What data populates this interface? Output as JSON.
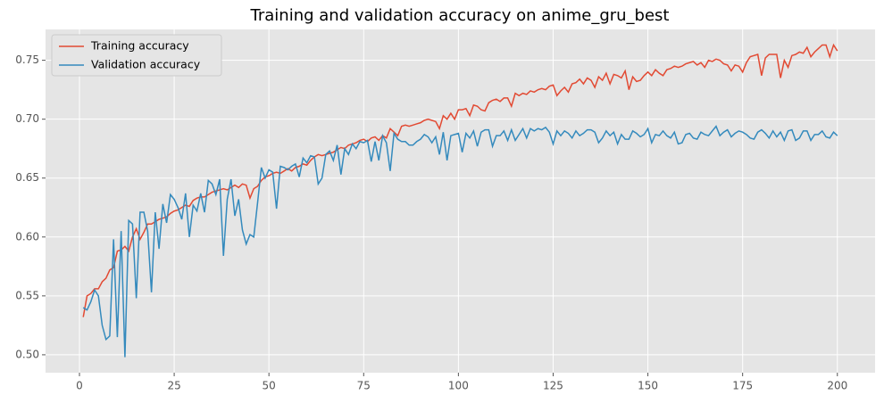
{
  "chart_data": {
    "type": "line",
    "title": "Training and validation accuracy on anime_gru_best",
    "x": [
      1,
      2,
      3,
      4,
      5,
      6,
      7,
      8,
      9,
      10,
      11,
      12,
      13,
      14,
      15,
      16,
      17,
      18,
      19,
      20,
      21,
      22,
      23,
      24,
      25,
      26,
      27,
      28,
      29,
      30,
      31,
      32,
      33,
      34,
      35,
      36,
      37,
      38,
      39,
      40,
      41,
      42,
      43,
      44,
      45,
      46,
      47,
      48,
      49,
      50,
      51,
      52,
      53,
      54,
      55,
      56,
      57,
      58,
      59,
      60,
      61,
      62,
      63,
      64,
      65,
      66,
      67,
      68,
      69,
      70,
      71,
      72,
      73,
      74,
      75,
      76,
      77,
      78,
      79,
      80,
      81,
      82,
      83,
      84,
      85,
      86,
      87,
      88,
      89,
      90,
      91,
      92,
      93,
      94,
      95,
      96,
      97,
      98,
      99,
      100,
      101,
      102,
      103,
      104,
      105,
      106,
      107,
      108,
      109,
      110,
      111,
      112,
      113,
      114,
      115,
      116,
      117,
      118,
      119,
      120,
      121,
      122,
      123,
      124,
      125,
      126,
      127,
      128,
      129,
      130,
      131,
      132,
      133,
      134,
      135,
      136,
      137,
      138,
      139,
      140,
      141,
      142,
      143,
      144,
      145,
      146,
      147,
      148,
      149,
      150,
      151,
      152,
      153,
      154,
      155,
      156,
      157,
      158,
      159,
      160,
      161,
      162,
      163,
      164,
      165,
      166,
      167,
      168,
      169,
      170,
      171,
      172,
      173,
      174,
      175,
      176,
      177,
      178,
      179,
      180,
      181,
      182,
      183,
      184,
      185,
      186,
      187,
      188,
      189,
      190,
      191,
      192,
      193,
      194,
      195,
      196,
      197,
      198,
      199,
      200
    ],
    "series": [
      {
        "name": "Training accuracy",
        "color": "#E24A33",
        "values": [
          0.532,
          0.55,
          0.552,
          0.556,
          0.556,
          0.562,
          0.565,
          0.572,
          0.574,
          0.588,
          0.589,
          0.592,
          0.588,
          0.6,
          0.607,
          0.598,
          0.604,
          0.611,
          0.611,
          0.613,
          0.615,
          0.616,
          0.617,
          0.62,
          0.622,
          0.623,
          0.625,
          0.627,
          0.626,
          0.631,
          0.633,
          0.634,
          0.634,
          0.636,
          0.638,
          0.639,
          0.64,
          0.641,
          0.64,
          0.642,
          0.644,
          0.642,
          0.645,
          0.644,
          0.633,
          0.641,
          0.643,
          0.648,
          0.651,
          0.652,
          0.654,
          0.655,
          0.654,
          0.656,
          0.658,
          0.656,
          0.659,
          0.66,
          0.662,
          0.661,
          0.665,
          0.668,
          0.67,
          0.669,
          0.67,
          0.671,
          0.672,
          0.674,
          0.676,
          0.675,
          0.678,
          0.679,
          0.68,
          0.682,
          0.683,
          0.681,
          0.684,
          0.685,
          0.682,
          0.686,
          0.684,
          0.692,
          0.689,
          0.686,
          0.694,
          0.695,
          0.694,
          0.695,
          0.696,
          0.697,
          0.699,
          0.7,
          0.699,
          0.698,
          0.692,
          0.703,
          0.7,
          0.705,
          0.7,
          0.708,
          0.708,
          0.709,
          0.703,
          0.712,
          0.711,
          0.708,
          0.707,
          0.714,
          0.716,
          0.717,
          0.715,
          0.718,
          0.718,
          0.711,
          0.722,
          0.72,
          0.722,
          0.721,
          0.724,
          0.723,
          0.725,
          0.726,
          0.725,
          0.728,
          0.729,
          0.72,
          0.724,
          0.727,
          0.723,
          0.73,
          0.731,
          0.734,
          0.73,
          0.735,
          0.733,
          0.727,
          0.736,
          0.733,
          0.739,
          0.73,
          0.738,
          0.737,
          0.735,
          0.741,
          0.725,
          0.736,
          0.732,
          0.733,
          0.737,
          0.74,
          0.737,
          0.742,
          0.739,
          0.737,
          0.742,
          0.743,
          0.745,
          0.744,
          0.745,
          0.747,
          0.748,
          0.749,
          0.746,
          0.748,
          0.744,
          0.75,
          0.749,
          0.751,
          0.75,
          0.747,
          0.746,
          0.741,
          0.746,
          0.745,
          0.74,
          0.748,
          0.753,
          0.754,
          0.755,
          0.737,
          0.752,
          0.755,
          0.755,
          0.755,
          0.735,
          0.75,
          0.744,
          0.754,
          0.755,
          0.757,
          0.756,
          0.761,
          0.753,
          0.757,
          0.76,
          0.763,
          0.763,
          0.753,
          0.763,
          0.758
        ]
      },
      {
        "name": "Validation accuracy",
        "color": "#348ABD",
        "values": [
          0.54,
          0.538,
          0.545,
          0.555,
          0.55,
          0.525,
          0.513,
          0.516,
          0.598,
          0.515,
          0.605,
          0.498,
          0.614,
          0.611,
          0.548,
          0.621,
          0.621,
          0.605,
          0.553,
          0.621,
          0.59,
          0.628,
          0.612,
          0.636,
          0.632,
          0.625,
          0.615,
          0.637,
          0.6,
          0.627,
          0.622,
          0.637,
          0.621,
          0.648,
          0.645,
          0.636,
          0.649,
          0.584,
          0.632,
          0.649,
          0.618,
          0.632,
          0.606,
          0.594,
          0.602,
          0.6,
          0.629,
          0.659,
          0.65,
          0.657,
          0.655,
          0.624,
          0.66,
          0.659,
          0.657,
          0.66,
          0.662,
          0.651,
          0.667,
          0.663,
          0.669,
          0.668,
          0.645,
          0.65,
          0.67,
          0.673,
          0.665,
          0.678,
          0.653,
          0.675,
          0.67,
          0.679,
          0.675,
          0.681,
          0.68,
          0.682,
          0.664,
          0.681,
          0.665,
          0.686,
          0.68,
          0.656,
          0.688,
          0.683,
          0.681,
          0.681,
          0.678,
          0.678,
          0.681,
          0.683,
          0.687,
          0.685,
          0.68,
          0.685,
          0.67,
          0.689,
          0.665,
          0.686,
          0.687,
          0.688,
          0.672,
          0.688,
          0.684,
          0.69,
          0.677,
          0.689,
          0.691,
          0.691,
          0.677,
          0.686,
          0.686,
          0.69,
          0.682,
          0.691,
          0.682,
          0.687,
          0.692,
          0.684,
          0.692,
          0.69,
          0.692,
          0.691,
          0.693,
          0.689,
          0.679,
          0.69,
          0.686,
          0.69,
          0.688,
          0.684,
          0.69,
          0.686,
          0.688,
          0.691,
          0.691,
          0.689,
          0.68,
          0.684,
          0.69,
          0.686,
          0.689,
          0.679,
          0.687,
          0.683,
          0.683,
          0.69,
          0.688,
          0.685,
          0.687,
          0.692,
          0.68,
          0.687,
          0.686,
          0.69,
          0.686,
          0.684,
          0.689,
          0.679,
          0.68,
          0.687,
          0.688,
          0.684,
          0.683,
          0.689,
          0.687,
          0.686,
          0.69,
          0.694,
          0.686,
          0.689,
          0.691,
          0.685,
          0.688,
          0.69,
          0.689,
          0.687,
          0.684,
          0.683,
          0.689,
          0.691,
          0.688,
          0.684,
          0.69,
          0.685,
          0.689,
          0.682,
          0.69,
          0.691,
          0.682,
          0.684,
          0.69,
          0.69,
          0.682,
          0.687,
          0.687,
          0.69,
          0.685,
          0.684,
          0.689,
          0.686
        ]
      }
    ],
    "xlim": [
      -8.95,
      209.95
    ],
    "xticks": [
      0,
      25,
      50,
      75,
      100,
      125,
      150,
      175,
      200
    ],
    "ylim": [
      0.4848,
      0.7762
    ],
    "yticks": [
      {
        "value": 0.5,
        "label": "0.50"
      },
      0.55,
      {
        "value": 0.6,
        "label": "0.60"
      },
      0.65,
      {
        "value": 0.7,
        "label": "0.70"
      },
      0.75
    ],
    "grid": true,
    "legend": "upper left"
  }
}
